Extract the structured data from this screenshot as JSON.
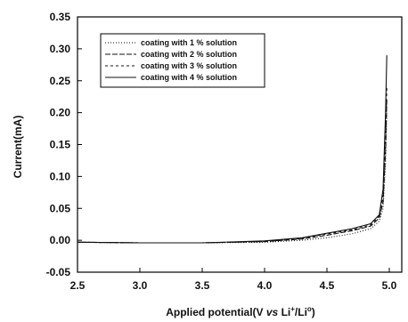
{
  "chart_data": {
    "type": "line",
    "xlabel": "Applied potential(V vs Li+/Li0)",
    "xlabel_parts": [
      "Applied potential(V ",
      "vs",
      " Li",
      "+",
      "/Li",
      "o",
      ")"
    ],
    "ylabel": "Current(mA)",
    "xlim": [
      2.5,
      5.1
    ],
    "ylim": [
      -0.05,
      0.35
    ],
    "xticks": [
      2.5,
      3.0,
      3.5,
      4.0,
      4.5,
      5.0
    ],
    "xtick_labels": [
      "2.5",
      "3.0",
      "3.5",
      "4.0",
      "4.5",
      "5.0"
    ],
    "yticks": [
      -0.05,
      0.0,
      0.05,
      0.1,
      0.15,
      0.2,
      0.25,
      0.3,
      0.35
    ],
    "ytick_labels": [
      "-0.05",
      "0.00",
      "0.05",
      "0.10",
      "0.15",
      "0.20",
      "0.25",
      "0.30",
      "0.35"
    ],
    "grid": false,
    "legend_position": "top-left",
    "series": [
      {
        "name": "coating with 1 % solution",
        "dash": "1,2",
        "x": [
          2.5,
          3.0,
          3.5,
          4.0,
          4.3,
          4.5,
          4.7,
          4.85,
          4.92,
          4.95,
          4.97,
          4.98
        ],
        "y": [
          -0.003,
          -0.004,
          -0.004,
          -0.003,
          0.0,
          0.004,
          0.01,
          0.018,
          0.03,
          0.05,
          0.12,
          0.2
        ]
      },
      {
        "name": "coating with 2 % solution",
        "dash": "6,2",
        "x": [
          2.5,
          3.0,
          3.5,
          4.0,
          4.3,
          4.5,
          4.7,
          4.85,
          4.92,
          4.95,
          4.97,
          4.98
        ],
        "y": [
          -0.003,
          -0.004,
          -0.004,
          -0.002,
          0.002,
          0.008,
          0.015,
          0.022,
          0.035,
          0.06,
          0.14,
          0.22
        ]
      },
      {
        "name": "coating with 3 % solution",
        "dash": "3,3",
        "x": [
          2.5,
          3.0,
          3.5,
          4.0,
          4.3,
          4.5,
          4.7,
          4.85,
          4.92,
          4.95,
          4.97,
          4.98
        ],
        "y": [
          -0.003,
          -0.004,
          -0.004,
          -0.002,
          0.003,
          0.01,
          0.016,
          0.024,
          0.038,
          0.07,
          0.16,
          0.24
        ]
      },
      {
        "name": "coating with 4 % solution",
        "dash": "",
        "x": [
          2.5,
          3.0,
          3.5,
          4.0,
          4.3,
          4.5,
          4.7,
          4.85,
          4.92,
          4.95,
          4.97,
          4.98
        ],
        "y": [
          -0.003,
          -0.004,
          -0.004,
          -0.001,
          0.004,
          0.011,
          0.018,
          0.026,
          0.04,
          0.08,
          0.2,
          0.29
        ]
      }
    ]
  }
}
